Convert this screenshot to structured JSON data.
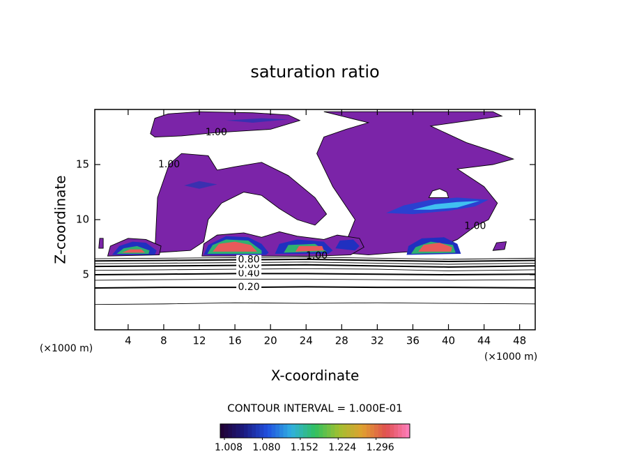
{
  "chart_data": {
    "type": "contour",
    "title": "saturation ratio",
    "x_label": "X-coordinate",
    "y_label": "Z-coordinate",
    "x_unit": "(×1000 m)",
    "contour_interval": "CONTOUR INTERVAL = 1.000E-01",
    "xlim": [
      0.25,
      49.75
    ],
    "xticks": [
      4,
      8,
      12,
      16,
      20,
      24,
      28,
      32,
      36,
      40,
      44,
      48
    ],
    "ylim": [
      0,
      20
    ],
    "yticks": [
      5,
      10,
      15
    ],
    "regions": [
      {
        "color": "#7b24a8",
        "outline": true,
        "label": "1.00",
        "x": [
          13.9,
          10,
          7,
          6.5,
          7,
          8.5,
          12,
          18,
          22,
          23.3,
          20,
          16
        ],
        "y": [
          17.9,
          17.6,
          17.5,
          17.8,
          19.2,
          19.6,
          19.8,
          19.7,
          19.5,
          19.0,
          18.2,
          18.0
        ]
      },
      {
        "color": "#7b24a8",
        "outline": true,
        "label": "1.00",
        "x": [
          8.6,
          10,
          13,
          14,
          16,
          19,
          22,
          25,
          26.3,
          25,
          23,
          21,
          19,
          17,
          14.5,
          13,
          12.5,
          11,
          7,
          7.3
        ],
        "y": [
          15,
          16,
          15.8,
          14.5,
          14.8,
          15.2,
          14,
          12,
          10.5,
          9.5,
          10,
          11,
          12.2,
          12.5,
          11.5,
          10,
          8,
          7.2,
          7,
          12
        ]
      },
      {
        "color": "#7b24a8",
        "outline": true,
        "label": "1.00",
        "x": [
          43,
          41,
          38,
          34,
          31,
          28,
          29.5,
          27,
          25.2,
          26,
          28.5,
          31,
          28,
          26,
          38,
          45,
          46,
          38,
          42,
          45,
          47.3,
          45,
          41,
          44,
          45.5,
          44.5
        ],
        "y": [
          9.4,
          8.2,
          7.2,
          7,
          6.8,
          7,
          10,
          13,
          16,
          17.5,
          18.2,
          18.8,
          19.4,
          19.8,
          19.8,
          19.8,
          19.4,
          18.5,
          17,
          16.2,
          15.5,
          15,
          14.6,
          13,
          11.5,
          10
        ]
      },
      {
        "color": "#7b24a8",
        "outline": true,
        "label": "1.00",
        "x": [
          25.2,
          21,
          17,
          12.3,
          12.5,
          14,
          17,
          19,
          21,
          23,
          26,
          27.5,
          30,
          30.5,
          29
        ],
        "y": [
          6.7,
          6.7,
          6.7,
          6.7,
          7.8,
          8.6,
          8.8,
          8.4,
          8.9,
          8.5,
          8.2,
          8.6,
          8.3,
          7.5,
          6.8
        ]
      },
      {
        "color": "#7b24a8",
        "outline": true,
        "x": [
          1.7,
          2,
          4,
          6,
          7.7,
          7.5
        ],
        "y": [
          6.7,
          7.6,
          8.3,
          8.2,
          7.6,
          6.8
        ]
      },
      {
        "color": "#7b24a8",
        "outline": true,
        "x": [
          0.7,
          1.2,
          1.2,
          0.8
        ],
        "y": [
          7.4,
          7.4,
          8.3,
          8.3
        ]
      },
      {
        "color": "#7b24a8",
        "outline": true,
        "x": [
          45,
          46.3,
          46.5,
          45.4
        ],
        "y": [
          7.2,
          7.3,
          8.0,
          7.9
        ]
      },
      {
        "color": "#ffffff",
        "outline": true,
        "x": [
          37.8,
          38.2,
          39,
          39.8,
          40
        ],
        "y": [
          12.0,
          12.6,
          12.8,
          12.5,
          12.0
        ]
      },
      {
        "color": "#3a30b0",
        "x": [
          10.3,
          12,
          14,
          12
        ],
        "y": [
          13.1,
          13.5,
          13.2,
          12.8
        ]
      },
      {
        "color": "#3a30b0",
        "x": [
          15,
          19,
          22,
          18
        ],
        "y": [
          19.0,
          19.2,
          19.1,
          18.8
        ]
      },
      {
        "color": "#2a40d0",
        "x": [
          33,
          35,
          38,
          41,
          44.5,
          43,
          40,
          36
        ],
        "y": [
          10.6,
          11.3,
          11.8,
          12,
          11.8,
          11.2,
          10.8,
          10.5
        ]
      },
      {
        "color": "#40c0f0",
        "x": [
          36,
          38.5,
          41,
          43.5,
          41,
          38
        ],
        "y": [
          10.9,
          11.4,
          11.6,
          11.7,
          11.1,
          10.9
        ]
      },
      {
        "color": "#2030c0",
        "x": [
          2.2,
          3,
          4.5,
          6,
          7.2,
          7
        ],
        "y": [
          6.8,
          7.6,
          8.0,
          7.9,
          7.2,
          6.8
        ]
      },
      {
        "color": "#30b070",
        "x": [
          2.7,
          3.5,
          5,
          6.4,
          6.3
        ],
        "y": [
          6.9,
          7.4,
          7.6,
          7.2,
          6.9
        ]
      },
      {
        "color": "#e85a5a",
        "x": [
          3.3,
          4.2,
          5.5,
          5.9
        ],
        "y": [
          7.0,
          7.3,
          7.3,
          7.0
        ]
      },
      {
        "color": "#2030c0",
        "x": [
          12.5,
          13,
          15,
          17.5,
          19,
          19.8,
          19.5
        ],
        "y": [
          6.8,
          7.7,
          8.5,
          8.4,
          7.8,
          7.0,
          6.8
        ]
      },
      {
        "color": "#30b070",
        "x": [
          12.9,
          13.5,
          15,
          17.5,
          19,
          19
        ],
        "y": [
          6.9,
          7.7,
          8.2,
          8.1,
          7.2,
          6.9
        ]
      },
      {
        "color": "#e85a5a",
        "x": [
          13.5,
          14.2,
          16,
          17.8,
          18.5
        ],
        "y": [
          7.1,
          7.8,
          8.0,
          7.7,
          7.1
        ]
      },
      {
        "color": "#2030c0",
        "x": [
          20.5,
          21,
          23,
          26,
          27,
          26.5
        ],
        "y": [
          6.9,
          7.8,
          8.2,
          8.0,
          7.2,
          6.9
        ]
      },
      {
        "color": "#30b070",
        "x": [
          21.5,
          22,
          25,
          26.3
        ],
        "y": [
          7.0,
          7.7,
          7.8,
          7.1
        ]
      },
      {
        "color": "#e85a5a",
        "x": [
          22.8,
          23.2,
          25.8,
          26
        ],
        "y": [
          7.1,
          7.6,
          7.6,
          7.2
        ]
      },
      {
        "color": "#2030c0",
        "x": [
          27.3,
          27.8,
          29.3,
          30,
          29.5
        ],
        "y": [
          7.4,
          8.1,
          8.2,
          7.6,
          7.2
        ]
      },
      {
        "color": "#2030c0",
        "x": [
          35.3,
          35.5,
          37,
          39.5,
          41,
          41.4
        ],
        "y": [
          6.8,
          7.6,
          8.3,
          8.4,
          7.8,
          6.9
        ]
      },
      {
        "color": "#30b070",
        "x": [
          35.8,
          36.3,
          38,
          40.5,
          40.8
        ],
        "y": [
          6.9,
          7.5,
          8.0,
          7.7,
          7.0
        ]
      },
      {
        "color": "#e85a5a",
        "x": [
          36.6,
          37.2,
          39,
          40.4,
          40.3
        ],
        "y": [
          7.1,
          7.7,
          7.9,
          7.5,
          7.1
        ]
      }
    ],
    "contours": [
      {
        "label": null,
        "bold": false,
        "x": [
          0.25,
          8,
          16,
          24,
          32,
          40,
          49.75
        ],
        "y": [
          2.3,
          2.35,
          2.45,
          2.4,
          2.45,
          2.4,
          2.35
        ]
      },
      {
        "label": "0.20",
        "bold": true,
        "x": [
          0.25,
          8,
          16,
          24,
          32,
          40,
          49.75
        ],
        "y": [
          3.8,
          3.85,
          3.85,
          3.9,
          3.85,
          3.85,
          3.8
        ]
      },
      {
        "label": null,
        "bold": false,
        "x": [
          0.25,
          8,
          16,
          24,
          32,
          40,
          49.75
        ],
        "y": [
          4.5,
          4.55,
          4.6,
          4.6,
          4.55,
          4.5,
          4.55
        ]
      },
      {
        "label": "0.40",
        "bold": true,
        "x": [
          0.25,
          8,
          16,
          24,
          32,
          40,
          49.75
        ],
        "y": [
          5.0,
          5.05,
          5.1,
          5.1,
          5.05,
          5.0,
          5.05
        ]
      },
      {
        "label": null,
        "bold": false,
        "x": [
          0.25,
          8,
          16,
          24,
          32,
          40,
          49.75
        ],
        "y": [
          5.4,
          5.45,
          5.5,
          5.55,
          5.5,
          5.35,
          5.45
        ]
      },
      {
        "label": "0.60",
        "bold": true,
        "x": [
          0.25,
          8,
          16,
          24,
          32,
          40,
          49.75
        ],
        "y": [
          5.75,
          5.8,
          5.85,
          5.9,
          5.8,
          5.7,
          5.8
        ]
      },
      {
        "label": null,
        "bold": false,
        "x": [
          0.25,
          8,
          16,
          24,
          32,
          40,
          49.75
        ],
        "y": [
          6.0,
          6.05,
          6.1,
          6.15,
          6.05,
          5.95,
          6.05
        ]
      },
      {
        "label": "0.80",
        "bold": true,
        "x": [
          0.25,
          8,
          16,
          24,
          32,
          40,
          49.75
        ],
        "y": [
          6.25,
          6.3,
          6.35,
          6.4,
          6.3,
          6.2,
          6.3
        ]
      },
      {
        "label": null,
        "bold": false,
        "x": [
          0.25,
          8,
          16,
          24,
          32,
          40,
          49.75
        ],
        "y": [
          6.45,
          6.5,
          6.55,
          6.6,
          6.5,
          6.4,
          6.5
        ]
      }
    ],
    "colorbar": {
      "lim": [
        1.0,
        1.36
      ],
      "ticks": [
        1.008,
        {
          "value": 1.08,
          "label": "1.080"
        },
        1.152,
        1.224,
        1.296
      ],
      "colors": [
        "#200030",
        "#1a1a80",
        "#2050e0",
        "#30b0e0",
        "#30c060",
        "#a0c030",
        "#e0a030",
        "#e05050",
        "#ff80c0"
      ]
    }
  }
}
